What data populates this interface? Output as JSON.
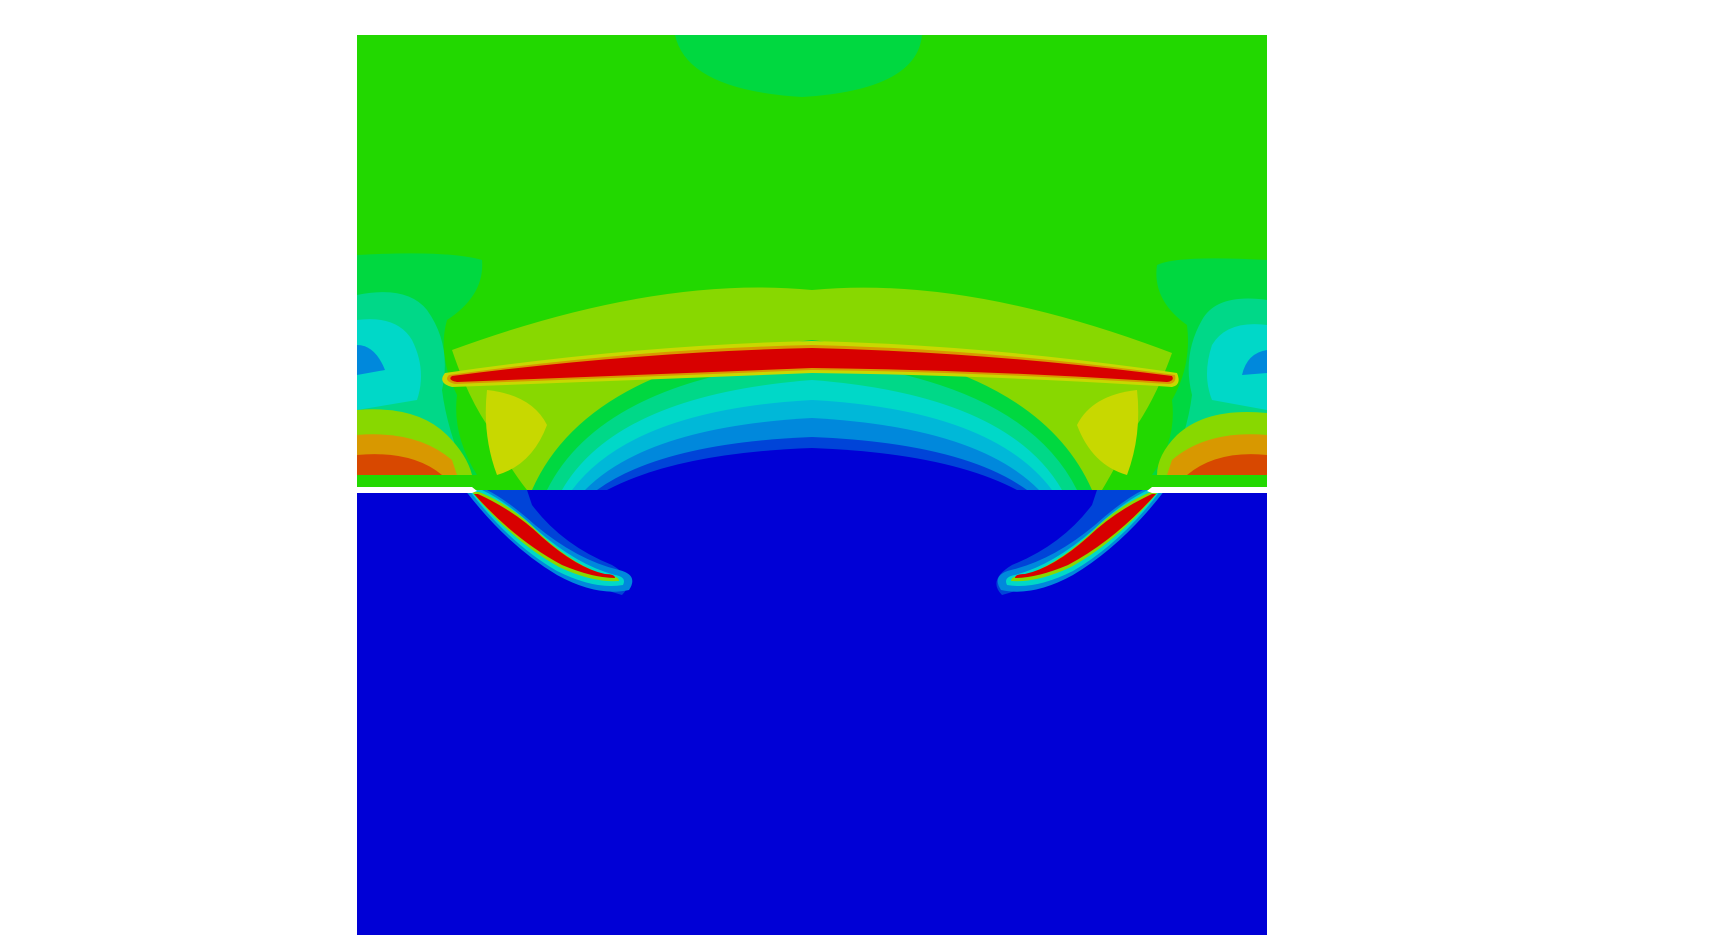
{
  "figure": {
    "kind": "finite-element contour plot",
    "description_visible_text": "",
    "colormap": {
      "deep_blue": "#0000d6",
      "blue": "#0044d8",
      "mid_blue": "#0088dc",
      "light_blue": "#00b8d8",
      "cyan": "#00d8c8",
      "cyan_green": "#00d888",
      "green": "#00d840",
      "bright_green": "#22d800",
      "yellow_green": "#88d800",
      "yellow": "#c8d800",
      "orange": "#d89800",
      "red_orange": "#d84800",
      "red": "#d80000",
      "notch": "#ffffff",
      "background": "#ffffff"
    }
  }
}
